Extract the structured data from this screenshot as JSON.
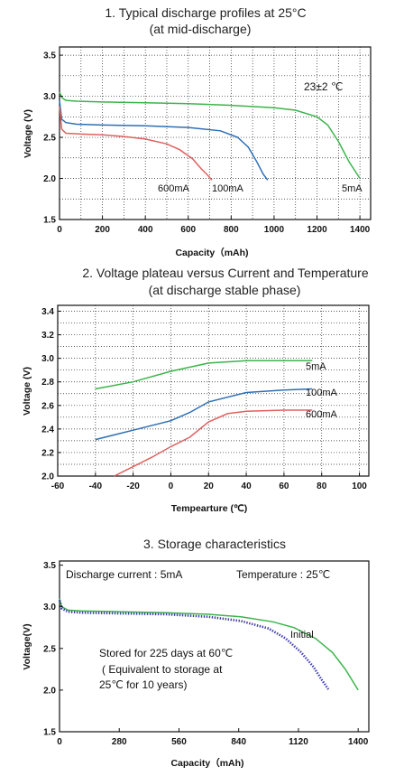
{
  "chart_data": [
    {
      "type": "line",
      "title": "1. Typical discharge profiles at 25°C",
      "subtitle": "(at mid-discharge)",
      "xlabel": "Capacity（mAh)",
      "ylabel": "Voltage (V)",
      "xlim": [
        0,
        1450
      ],
      "ylim": [
        1.5,
        3.6
      ],
      "xticks": [
        "0",
        "200",
        "400",
        "600",
        "800",
        "1000",
        "1200",
        "1400"
      ],
      "yticks": [
        "1.5",
        "2.0",
        "2.5",
        "3.0",
        "3.5"
      ],
      "annotation": "23±2 ℃",
      "grid": "dotted",
      "series": [
        {
          "name": "5mA",
          "color": "#3cb44b",
          "x": [
            0,
            12,
            30,
            80,
            200,
            400,
            600,
            800,
            1000,
            1100,
            1200,
            1250,
            1300,
            1350,
            1400
          ],
          "y": [
            3.05,
            2.98,
            2.95,
            2.94,
            2.93,
            2.92,
            2.91,
            2.89,
            2.86,
            2.83,
            2.75,
            2.65,
            2.45,
            2.2,
            2.0
          ]
        },
        {
          "name": "100mA",
          "color": "#2e6fb4",
          "x": [
            0,
            10,
            30,
            80,
            200,
            400,
            600,
            750,
            830,
            880,
            920,
            950,
            970
          ],
          "y": [
            2.95,
            2.72,
            2.68,
            2.66,
            2.65,
            2.64,
            2.62,
            2.58,
            2.5,
            2.38,
            2.2,
            2.05,
            1.98
          ]
        },
        {
          "name": "600mA",
          "color": "#e06060",
          "x": [
            0,
            10,
            30,
            100,
            200,
            300,
            400,
            500,
            560,
            620,
            660,
            690,
            710
          ],
          "y": [
            2.88,
            2.6,
            2.55,
            2.54,
            2.53,
            2.51,
            2.48,
            2.42,
            2.35,
            2.24,
            2.12,
            2.04,
            1.98
          ]
        }
      ]
    },
    {
      "type": "line",
      "title": "2. Voltage plateau versus Current and Temperature",
      "subtitle": "(at discharge stable phase)",
      "xlabel": "Tempearture (℃)",
      "ylabel": "Voltage (V)",
      "xlim": [
        -60,
        105
      ],
      "ylim": [
        2.0,
        3.45
      ],
      "xticks": [
        "-60",
        "-40",
        "-20",
        "0",
        "20",
        "40",
        "60",
        "80",
        "100"
      ],
      "yticks": [
        "2.0",
        "2.2",
        "2.4",
        "2.6",
        "2.8",
        "3.0",
        "3.2",
        "3.4"
      ],
      "grid": "dotted",
      "series": [
        {
          "name": "5mA",
          "color": "#3cb44b",
          "x": [
            -40,
            -20,
            0,
            20,
            40,
            60,
            75
          ],
          "y": [
            2.74,
            2.8,
            2.89,
            2.96,
            2.98,
            2.98,
            2.98
          ]
        },
        {
          "name": "100mA",
          "color": "#2e6fb4",
          "x": [
            -40,
            -20,
            0,
            10,
            20,
            40,
            60,
            75
          ],
          "y": [
            2.31,
            2.39,
            2.47,
            2.54,
            2.63,
            2.71,
            2.73,
            2.74
          ]
        },
        {
          "name": "600mA",
          "color": "#e06060",
          "x": [
            -30,
            -20,
            -10,
            0,
            10,
            20,
            30,
            40,
            60,
            75
          ],
          "y": [
            2.0,
            2.08,
            2.16,
            2.25,
            2.33,
            2.46,
            2.53,
            2.55,
            2.56,
            2.56
          ]
        }
      ]
    },
    {
      "type": "line",
      "title": "3. Storage characteristics",
      "xlabel": "Capacity（mAh)",
      "ylabel": "Voltage(V)",
      "xlim": [
        0,
        1450
      ],
      "ylim": [
        1.5,
        3.55
      ],
      "xticks": [
        "0",
        "280",
        "560",
        "840",
        "1120",
        "1400"
      ],
      "yticks": [
        "1.5",
        "2.0",
        "2.5",
        "3.0",
        "3.5"
      ],
      "note_left": "Discharge current : 5mA",
      "note_right": "Temperature : 25℃",
      "storage_lines": [
        "Stored for 225 days at 60℃",
        "( Equivalent to storage at",
        "25℃ for 10 years)"
      ],
      "series": [
        {
          "name": "Initial",
          "color": "#3cb44b",
          "x": [
            0,
            10,
            40,
            100,
            300,
            500,
            700,
            850,
            1000,
            1100,
            1200,
            1280,
            1340,
            1400
          ],
          "y": [
            3.1,
            3.0,
            2.96,
            2.95,
            2.94,
            2.93,
            2.91,
            2.88,
            2.82,
            2.75,
            2.62,
            2.45,
            2.25,
            2.0
          ]
        },
        {
          "name": "",
          "color": "#3a3aa8",
          "style": "dotted",
          "x": [
            0,
            10,
            40,
            100,
            300,
            500,
            700,
            850,
            980,
            1060,
            1130,
            1190,
            1230,
            1260
          ],
          "y": [
            3.08,
            2.98,
            2.94,
            2.93,
            2.92,
            2.91,
            2.88,
            2.83,
            2.74,
            2.62,
            2.46,
            2.28,
            2.12,
            2.01
          ]
        }
      ]
    }
  ]
}
